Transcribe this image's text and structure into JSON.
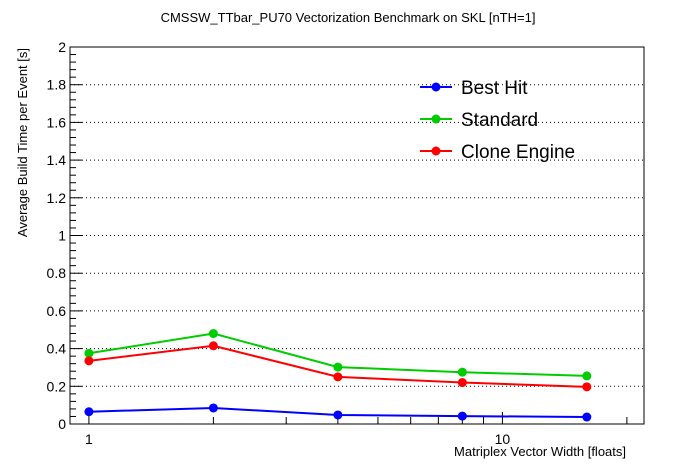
{
  "chart_data": {
    "type": "line",
    "title": "CMSSW_TTbar_PU70 Vectorization Benchmark on SKL [nTH=1]",
    "xlabel": "Matriplex Vector Width [floats]",
    "ylabel": "Average Build Time per Event [s]",
    "x_scale": "log",
    "xlim": [
      0.9,
      22
    ],
    "ylim": [
      0,
      2
    ],
    "x_tick_labels": [
      {
        "value": 1,
        "label": "1"
      },
      {
        "value": 10,
        "label": "10"
      }
    ],
    "y_ticks": [
      {
        "value": 0,
        "label": "0"
      },
      {
        "value": 0.2,
        "label": "0.2"
      },
      {
        "value": 0.4,
        "label": "0.4"
      },
      {
        "value": 0.6,
        "label": "0.6"
      },
      {
        "value": 0.8,
        "label": "0.8"
      },
      {
        "value": 1,
        "label": "1"
      },
      {
        "value": 1.2,
        "label": "1.2"
      },
      {
        "value": 1.4,
        "label": "1.4"
      },
      {
        "value": 1.6,
        "label": "1.6"
      },
      {
        "value": 1.8,
        "label": "1.8"
      },
      {
        "value": 2,
        "label": "2"
      }
    ],
    "grid": "horizontal dotted",
    "legend_position": "top-right",
    "x": [
      1,
      2,
      4,
      8,
      16
    ],
    "series": [
      {
        "name": "Best Hit",
        "color": "#0000ff",
        "values": [
          0.065,
          0.085,
          0.048,
          0.042,
          0.037
        ]
      },
      {
        "name": "Standard",
        "color": "#00cc00",
        "values": [
          0.375,
          0.48,
          0.302,
          0.275,
          0.255
        ]
      },
      {
        "name": "Clone Engine",
        "color": "#ff0000",
        "values": [
          0.335,
          0.415,
          0.25,
          0.22,
          0.197
        ]
      }
    ]
  }
}
